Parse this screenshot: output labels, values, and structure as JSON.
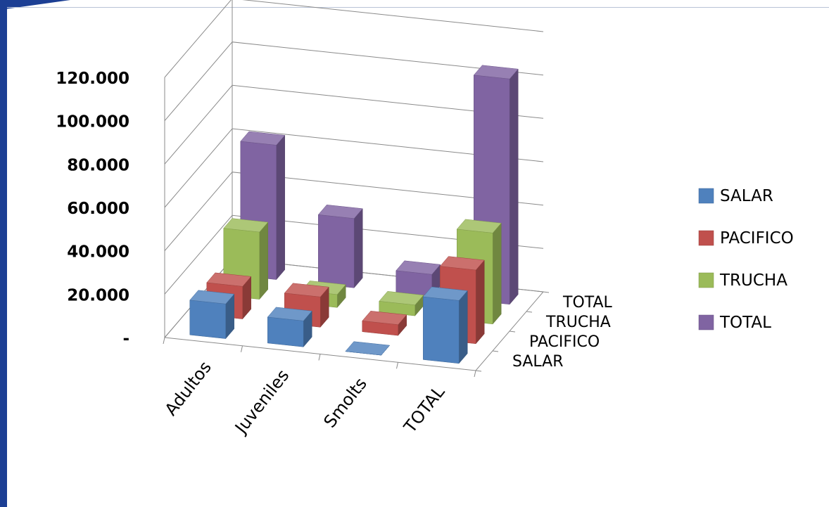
{
  "chart_data": {
    "type": "bar",
    "subtype": "3d-column",
    "categories": [
      "Adultos",
      "Juveniles",
      "Smolts",
      "TOTAL"
    ],
    "depth_categories": [
      "SALAR",
      "PACIFICO",
      "TRUCHA",
      "TOTAL"
    ],
    "series": [
      {
        "name": "SALAR",
        "color": "#4f81bd",
        "values": [
          16000,
          12000,
          0,
          29000
        ]
      },
      {
        "name": "PACIFICO",
        "color": "#c0504d",
        "values": [
          15000,
          14000,
          5000,
          34000
        ]
      },
      {
        "name": "TRUCHA",
        "color": "#9bbb59",
        "values": [
          31000,
          6000,
          5000,
          42000
        ]
      },
      {
        "name": "TOTAL",
        "color": "#8064a2",
        "values": [
          62000,
          32000,
          10000,
          104000
        ]
      }
    ],
    "yticks": [
      "-",
      "20.000",
      "40.000",
      "60.000",
      "80.000",
      "100.000",
      "120.000"
    ],
    "ylim": [
      0,
      120000
    ],
    "title": "",
    "xlabel": "",
    "ylabel": "",
    "grid": true,
    "legend_position": "right"
  }
}
